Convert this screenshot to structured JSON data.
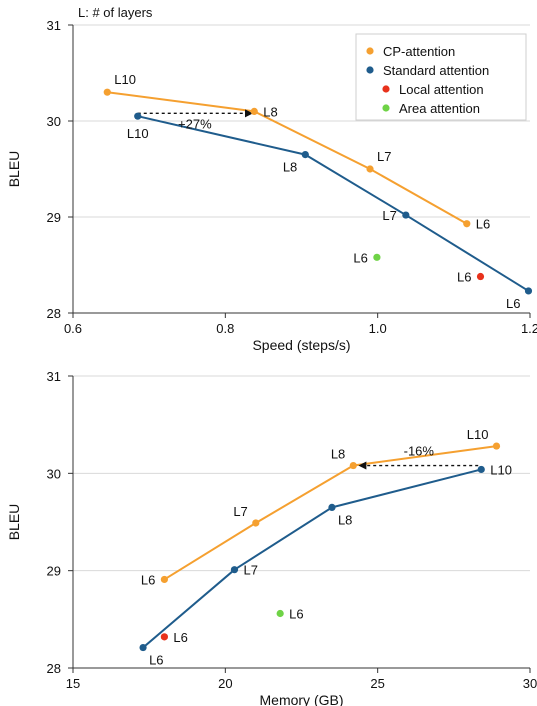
{
  "colors": {
    "cp": "#f5a030",
    "standard": "#1f5c8c",
    "local": "#e8321c",
    "area": "#6fd346",
    "axis": "#333333",
    "grid": "#d9d9d9"
  },
  "note": "L: # of layers",
  "legend": {
    "placement": "top-right",
    "items": [
      {
        "label": "CP-attention",
        "color": "#f5a030"
      },
      {
        "label": "Standard attention",
        "color": "#1f5c8c"
      },
      {
        "label": "Local attention",
        "color": "#e8321c"
      },
      {
        "label": "Area attention",
        "color": "#6fd346"
      }
    ]
  },
  "chart_data": [
    {
      "type": "line",
      "xlabel": "Speed (steps/s)",
      "ylabel": "BLEU",
      "xlim": [
        0.6,
        1.2
      ],
      "ylim": [
        28,
        31
      ],
      "xticks": [
        "0.6",
        "0.8",
        "1.0",
        "1.2"
      ],
      "yticks": [
        "28",
        "29",
        "30",
        "31"
      ],
      "grid": "horizontal",
      "series": [
        {
          "name": "CP-attention",
          "color": "#f5a030",
          "points": [
            {
              "x": 0.645,
              "y": 30.3,
              "label": "L10",
              "pos": "above-right"
            },
            {
              "x": 0.838,
              "y": 30.1,
              "label": "L8",
              "pos": "right"
            },
            {
              "x": 0.99,
              "y": 29.5,
              "label": "L7",
              "pos": "above-right"
            },
            {
              "x": 1.117,
              "y": 28.93,
              "label": "L6",
              "pos": "right"
            }
          ]
        },
        {
          "name": "Standard attention",
          "color": "#1f5c8c",
          "points": [
            {
              "x": 0.685,
              "y": 30.05,
              "label": "L10",
              "pos": "below"
            },
            {
              "x": 0.905,
              "y": 29.65,
              "label": "L8",
              "pos": "below-left"
            },
            {
              "x": 1.037,
              "y": 29.02,
              "label": "L7",
              "pos": "left"
            },
            {
              "x": 1.198,
              "y": 28.23,
              "label": "L6",
              "pos": "below-left"
            }
          ]
        },
        {
          "name": "Local attention",
          "color": "#e8321c",
          "points": [
            {
              "x": 1.135,
              "y": 28.38,
              "label": "L6",
              "pos": "left"
            }
          ]
        },
        {
          "name": "Area attention",
          "color": "#6fd346",
          "points": [
            {
              "x": 0.999,
              "y": 28.58,
              "label": "L6",
              "pos": "left"
            }
          ]
        }
      ],
      "annotation": {
        "text": "+27%",
        "from": {
          "x": 0.685,
          "y": 30.08
        },
        "to": {
          "x": 0.835,
          "y": 30.08
        }
      }
    },
    {
      "type": "line",
      "xlabel": "Memory (GB)",
      "ylabel": "BLEU",
      "xlim": [
        15,
        30
      ],
      "ylim": [
        28,
        31
      ],
      "xticks": [
        "15",
        "20",
        "25",
        "30"
      ],
      "yticks": [
        "28",
        "29",
        "30",
        "31"
      ],
      "grid": "horizontal",
      "series": [
        {
          "name": "CP-attention",
          "color": "#f5a030",
          "points": [
            {
              "x": 18.0,
              "y": 28.91,
              "label": "L6",
              "pos": "left"
            },
            {
              "x": 21.0,
              "y": 29.49,
              "label": "L7",
              "pos": "above-left"
            },
            {
              "x": 24.2,
              "y": 30.08,
              "label": "L8",
              "pos": "above-left"
            },
            {
              "x": 28.9,
              "y": 30.28,
              "label": "L10",
              "pos": "above-left"
            }
          ]
        },
        {
          "name": "Standard attention",
          "color": "#1f5c8c",
          "points": [
            {
              "x": 17.3,
              "y": 28.21,
              "label": "L6",
              "pos": "below-right"
            },
            {
              "x": 20.3,
              "y": 29.01,
              "label": "L7",
              "pos": "right"
            },
            {
              "x": 23.5,
              "y": 29.65,
              "label": "L8",
              "pos": "below-right"
            },
            {
              "x": 28.4,
              "y": 30.04,
              "label": "L10",
              "pos": "right"
            }
          ]
        },
        {
          "name": "Local attention",
          "color": "#e8321c",
          "points": [
            {
              "x": 18.0,
              "y": 28.32,
              "label": "L6",
              "pos": "right"
            }
          ]
        },
        {
          "name": "Area attention",
          "color": "#6fd346",
          "points": [
            {
              "x": 21.8,
              "y": 28.56,
              "label": "L6",
              "pos": "right"
            }
          ]
        }
      ],
      "annotation": {
        "text": "-16%",
        "from": {
          "x": 28.3,
          "y": 30.08
        },
        "to": {
          "x": 24.4,
          "y": 30.08
        }
      }
    }
  ]
}
